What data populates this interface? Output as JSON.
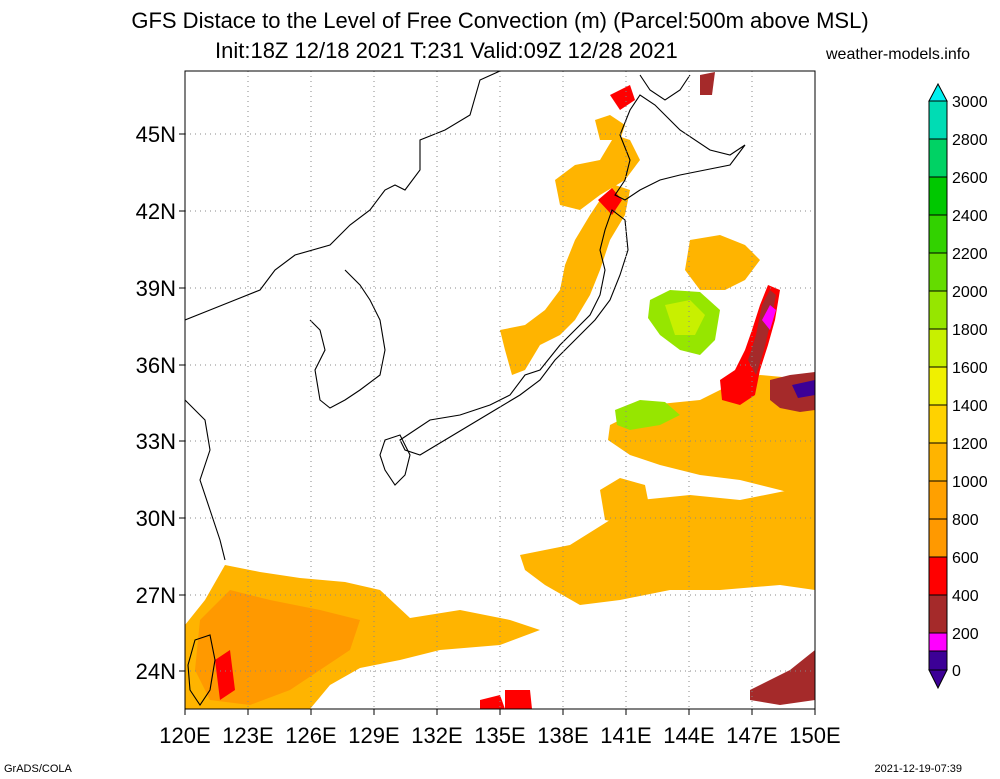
{
  "header": {
    "title": "GFS Distace to the Level of Free Convection (m) (Parcel:500m above MSL)",
    "subtitle": "Init:18Z 12/18 2021 T:231 Valid:09Z 12/28 2021",
    "site": "weather-models.info"
  },
  "map": {
    "lon_range": [
      120,
      150
    ],
    "lat_range": [
      22.5,
      47.5
    ],
    "lon_ticks": [
      "120E",
      "123E",
      "126E",
      "129E",
      "132E",
      "135E",
      "138E",
      "141E",
      "144E",
      "147E",
      "150E"
    ],
    "lat_ticks": [
      "24N",
      "27N",
      "30N",
      "33N",
      "36N",
      "39N",
      "42N",
      "45N"
    ]
  },
  "colorbar": {
    "labels": [
      "0",
      "200",
      "400",
      "600",
      "800",
      "1000",
      "1200",
      "1400",
      "1600",
      "1800",
      "2000",
      "2200",
      "2400",
      "2600",
      "2800",
      "3000"
    ],
    "colors": [
      "#3c0096",
      "#ff00ff",
      "#a52a2a",
      "#ff0000",
      "#ff9900",
      "#ffb400",
      "#ffd200",
      "#f0f000",
      "#c8f000",
      "#96e600",
      "#64dc00",
      "#32d200",
      "#00c800",
      "#00d264",
      "#00dcb4",
      "#00f0f0"
    ]
  },
  "footer": {
    "left": "GrADS/COLA",
    "right": "2021-12-19-07:39"
  }
}
